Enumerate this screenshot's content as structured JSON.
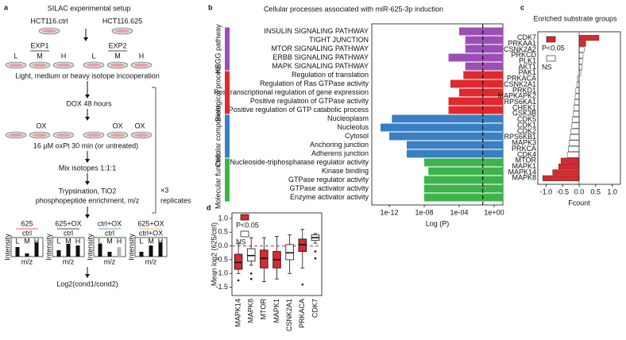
{
  "panels": [
    "a",
    "b",
    "c",
    "d"
  ],
  "diagram": {
    "title": "SILAC experimental setup",
    "cell_lines": [
      "HCT116.ctrl",
      "HCT116.625"
    ],
    "experiments": [
      "EXP1",
      "EXP2"
    ],
    "isotopes": [
      "L",
      "M",
      "H"
    ],
    "labeling": "Light, medium or heavy isotope incooperation",
    "dox": "DOX 48 hours",
    "ox": "OX",
    "treatment": "16 µM oxPt 30 min (or untreated)",
    "mix": "Mix isotopes 1:1:1",
    "replicates": [
      "×3",
      "replicates"
    ],
    "enrichment": [
      "Trypsination, TiO2",
      "phosphopeptide enrichment, m/z"
    ],
    "comparisons": [
      {
        "top": "625",
        "bottom": "ctrl"
      },
      {
        "top": "625+OX",
        "bottom": "ctrl"
      },
      {
        "top": "ctrl+OX",
        "bottom": "ctrl"
      },
      {
        "top": "625+OX",
        "bottom": "ctrl+OX"
      }
    ],
    "intensity": "Intensity",
    "mz": "m/z",
    "result": "Log2(cond1/cond2)"
  },
  "chart_data": [
    {
      "type": "hbar",
      "title": "Cellular processes associated with miR-625-3p induction",
      "x_label": "Log (P)",
      "xscale": "log",
      "xlim": [
        1e-14,
        10
      ],
      "xticks": [
        {
          "value": 1e-12,
          "label": "1e-12"
        },
        {
          "value": 1e-08,
          "label": "1e-08"
        },
        {
          "value": 0.0001,
          "label": "1e-04"
        },
        {
          "value": 1,
          "label": "1e+00"
        }
      ],
      "reference_line": 0.05,
      "legend": "left",
      "categories": [
        "INSULIN SIGNALING PATHWAY",
        "TIGHT JUNCTION",
        "MTOR SIGNALING PATHWAY",
        "ERBB SIGNALING PATHWAY",
        "MAPK SIGNALING PATHWAY",
        "Regulation of translation",
        "Regulation of Ras GTPase activity",
        "Posttranscriptional regulation of gene expression",
        "Positive regulation of GTPase activity",
        "Positive regulation of GTP catabolic process",
        "Nucleoplasm",
        "Nucleolus",
        "Cytosol",
        "Anchoring junction",
        "Adherens junction",
        "Nucleoside-triphosphatase regulator activity",
        "Kinase binding",
        "GTPase regulator activity",
        "GTPase activator activity",
        "Enzyme activator activity"
      ],
      "series": [
        {
          "name": "KEGG pathway",
          "color": "#9b4fb5",
          "values": [
            0.0001,
            0.0005,
            0.0005,
            6e-06,
            0.0005,
            null,
            null,
            null,
            null,
            null,
            null,
            null,
            null,
            null,
            null,
            null,
            null,
            null,
            null,
            null
          ]
        },
        {
          "name": "Biological process",
          "color": "#e0282e",
          "values": [
            null,
            null,
            null,
            null,
            null,
            0.0003,
            1e-05,
            0.0001,
            6e-06,
            6e-06,
            null,
            null,
            null,
            null,
            null,
            null,
            null,
            null,
            null,
            null
          ]
        },
        {
          "name": "Cellular component",
          "color": "#3a7fc1",
          "values": [
            null,
            null,
            null,
            null,
            null,
            null,
            null,
            null,
            null,
            null,
            2e-12,
            1e-13,
            1e-12,
            1e-10,
            1e-10,
            null,
            null,
            null,
            null,
            null
          ]
        },
        {
          "name": "Molecular function",
          "color": "#3cb44b",
          "values": [
            null,
            null,
            null,
            null,
            null,
            null,
            null,
            null,
            null,
            null,
            null,
            null,
            null,
            null,
            null,
            1e-08,
            3e-08,
            1e-08,
            1e-08,
            1e-08
          ]
        }
      ]
    },
    {
      "type": "hbar",
      "title": "Enriched substrate groups",
      "x_label": "Fcount",
      "xscale": "linear",
      "xlim": [
        -1.25,
        1.25
      ],
      "xticks": [
        {
          "value": -1,
          "label": "-1.0"
        },
        -0.5,
        {
          "value": 0,
          "label": "0.0"
        },
        0.5,
        {
          "value": 1,
          "label": "1.0"
        }
      ],
      "legend": "upper left",
      "categories": [
        "CDK7",
        "PRKAA1",
        "CSNK2A2",
        "PRKCD",
        "PLK1",
        "AKT1",
        "PAK1",
        "PRKACA",
        "CSNK2A1",
        "PRKD1",
        "MAPKAPK2",
        "RPS6KA1",
        "CHEK1",
        "GSK3B",
        "CDK5",
        "CDK1",
        "CDK2",
        "RPS6KB1",
        "MAPK3",
        "PRKCA",
        "CDK4",
        "MTOR",
        "MAPK1",
        "MAPK14",
        "MAPK8"
      ],
      "series": [
        {
          "name": "P<0.05",
          "color": "#d9282e",
          "values": [
            0.6,
            0.2,
            null,
            null,
            null,
            null,
            null,
            null,
            null,
            null,
            null,
            null,
            null,
            null,
            null,
            null,
            null,
            null,
            null,
            null,
            null,
            -0.55,
            -0.62,
            -0.8,
            -1.1
          ]
        },
        {
          "name": "NS",
          "color": "#ffffff",
          "values": [
            null,
            null,
            0.15,
            0.12,
            0.1,
            0.08,
            0.05,
            -0.05,
            -0.07,
            -0.1,
            -0.12,
            -0.14,
            -0.16,
            -0.18,
            -0.2,
            -0.22,
            -0.25,
            -0.28,
            -0.3,
            -0.33,
            -0.36,
            null,
            null,
            null,
            null
          ]
        }
      ]
    },
    {
      "type": "box",
      "y_label": "Mean log2 (625/ctrl)",
      "ylim": [
        -1.8,
        1.2
      ],
      "yticks": [
        -1.5,
        {
          "value": -1,
          "label": "-1.0"
        },
        -0.5,
        {
          "value": 0,
          "label": "0.0"
        },
        0.5,
        {
          "value": 1,
          "label": "1.0"
        }
      ],
      "reference_line": 0,
      "categories": [
        "MAPK14",
        "MAPK8",
        "MTOR",
        "MAPK1",
        "CSNK2A1",
        "PRKACA",
        "CDK7"
      ],
      "stats": [
        [
          -1.0,
          -0.85,
          -0.6,
          -0.3,
          0.1
        ],
        [
          -0.7,
          -0.55,
          -0.35,
          -0.1,
          0.3
        ],
        [
          -1.3,
          -0.8,
          -0.45,
          -0.15,
          0.3
        ],
        [
          -1.2,
          -0.8,
          -0.5,
          -0.2,
          0.35
        ],
        [
          -1.0,
          -0.5,
          -0.25,
          0.05,
          0.4
        ],
        [
          -0.8,
          -0.2,
          0.05,
          0.25,
          0.6
        ],
        [
          0.1,
          0.2,
          0.3,
          0.4,
          0.45
        ]
      ],
      "outliers": [
        [
          -1.25
        ],
        [
          -1.0,
          -1.2
        ],
        [],
        [],
        [],
        [
          -1.4
        ],
        [
          -0.2,
          -0.45
        ]
      ],
      "colors": [
        "#d9282e",
        "#ffffff",
        "#d9282e",
        "#d9282e",
        "#ffffff",
        "#d9282e",
        "#ffffff"
      ],
      "legend": [
        {
          "name": "P<0.05",
          "color": "#d9282e"
        },
        {
          "name": "NS",
          "color": "#ffffff"
        }
      ]
    }
  ]
}
